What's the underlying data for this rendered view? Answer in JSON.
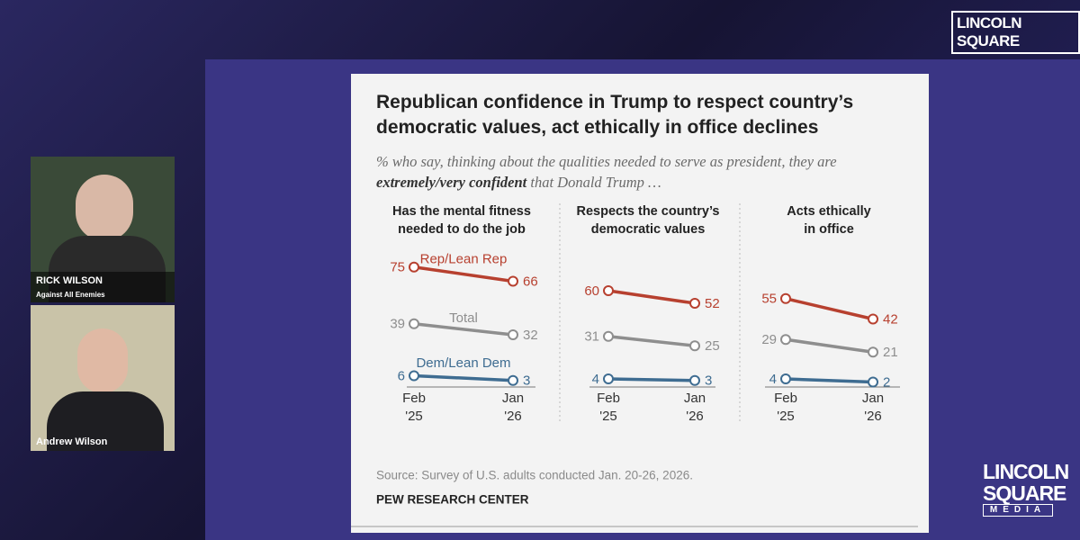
{
  "overlay": {
    "logo_top": "LINCOLN SQUARE",
    "logo_bottom": [
      "LINCOLN",
      "SQUARE",
      "MEDIA"
    ],
    "speakers": [
      {
        "name": "RICK WILSON",
        "show": "Against All Enemies"
      },
      {
        "name": "Andrew Wilson"
      }
    ]
  },
  "chart_data": [
    {
      "type": "line",
      "title": "Republican confidence in Trump to respect country’s democratic values, act ethically in office declines",
      "subtitle": [
        "% who say, thinking about the qualities needed to serve as president, they are ",
        "extremely/very confident",
        " that Donald Trump …"
      ],
      "panel_title": "Has the mental fitness\nneeded to do the job",
      "categories": [
        "Feb\n'25",
        "Jan\n'26"
      ],
      "series": [
        {
          "name": "Rep/Lean Rep",
          "color": "#b7402f",
          "values": [
            75,
            66
          ]
        },
        {
          "name": "Total",
          "color": "#8e8e8e",
          "values": [
            39,
            32
          ]
        },
        {
          "name": "Dem/Lean Dem",
          "color": "#3e6c91",
          "values": [
            6,
            3
          ]
        }
      ]
    },
    {
      "type": "line",
      "panel_title": "Respects the country’s\ndemocratic values",
      "categories": [
        "Feb\n'25",
        "Jan\n'26"
      ],
      "series": [
        {
          "color": "#b7402f",
          "values": [
            60,
            52
          ]
        },
        {
          "color": "#8e8e8e",
          "values": [
            31,
            25
          ]
        },
        {
          "color": "#3e6c91",
          "values": [
            4,
            3
          ]
        }
      ]
    },
    {
      "type": "line",
      "panel_title": "Acts ethically\nin office",
      "categories": [
        "Feb\n'25",
        "Jan\n'26"
      ],
      "series": [
        {
          "color": "#b7402f",
          "values": [
            55,
            42
          ]
        },
        {
          "color": "#8e8e8e",
          "values": [
            29,
            21
          ]
        },
        {
          "color": "#3e6c91",
          "values": [
            4,
            2
          ]
        }
      ],
      "source": "Source: Survey of U.S. adults conducted Jan. 20-26, 2026.",
      "credit": "PEW RESEARCH CENTER"
    }
  ]
}
